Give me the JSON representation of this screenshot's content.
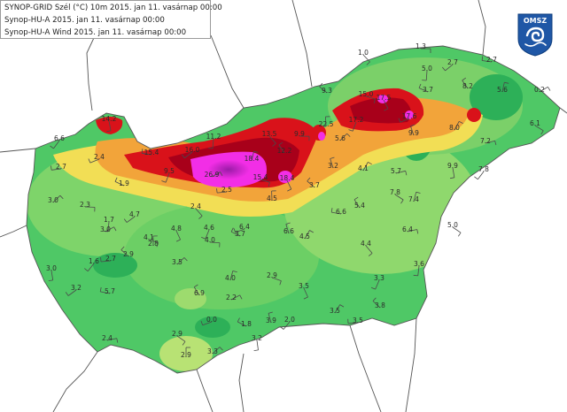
{
  "legend": {
    "line1": "SYNOP-GRID Szél (°C) 10m 2015. jan 11. vasárnap 00:00",
    "line2": "Synop-HU-A 2015. jan 11. vasárnap 00:00",
    "line3": "Synop-HU-A Wind 2015. jan 11. vasárnap 00:00"
  },
  "logo": {
    "text": "OMSZ",
    "color": "#1f57a6"
  },
  "colors": {
    "land_low": "#3fbf62",
    "land_mid": "#9ddb6e",
    "yellow": "#f2de55",
    "orange": "#f2a43a",
    "red": "#d9121a",
    "dark_red": "#a8001a",
    "magenta": "#f22ee6",
    "purple": "#9b1ba8",
    "border": "#555555"
  },
  "stations": [
    {
      "v": "1.3"
    },
    {
      "v": "1.0"
    },
    {
      "v": "5.0"
    },
    {
      "v": "2.7"
    },
    {
      "v": "2.7"
    },
    {
      "v": "8.2"
    },
    {
      "v": "5.6"
    },
    {
      "v": "0.2"
    },
    {
      "v": "15.0"
    },
    {
      "v": "17.5"
    },
    {
      "v": "17.2"
    },
    {
      "v": "17.6"
    },
    {
      "v": "3.7"
    },
    {
      "v": "9.9"
    },
    {
      "v": "8.0"
    },
    {
      "v": "7.2"
    },
    {
      "v": "6.1"
    },
    {
      "v": "14.2"
    },
    {
      "v": "6.6"
    },
    {
      "v": "2.7"
    },
    {
      "v": "9.3"
    },
    {
      "v": "22.5"
    },
    {
      "v": "5.6"
    },
    {
      "v": "9.9"
    },
    {
      "v": "13.5"
    },
    {
      "v": "11.2"
    },
    {
      "v": "16.0"
    },
    {
      "v": "15.4"
    },
    {
      "v": "12.2"
    },
    {
      "v": "18.4"
    },
    {
      "v": "26.9"
    },
    {
      "v": "15.4"
    },
    {
      "v": "18.4"
    },
    {
      "v": "9.5"
    },
    {
      "v": "2.4"
    },
    {
      "v": "1.9"
    },
    {
      "v": "3.2"
    },
    {
      "v": "4.1"
    },
    {
      "v": "5.7"
    },
    {
      "v": "7.8"
    },
    {
      "v": "9.9"
    },
    {
      "v": "7.8"
    },
    {
      "v": "2.5"
    },
    {
      "v": "3.7"
    },
    {
      "v": "4.5"
    },
    {
      "v": "3.0"
    },
    {
      "v": "2.3"
    },
    {
      "v": "2.4"
    },
    {
      "v": "1.7"
    },
    {
      "v": "4.7"
    },
    {
      "v": "6.6"
    },
    {
      "v": "5.4"
    },
    {
      "v": "7.4"
    },
    {
      "v": "3.0"
    },
    {
      "v": "4.1"
    },
    {
      "v": "4.8"
    },
    {
      "v": "4.6"
    },
    {
      "v": "6.4"
    },
    {
      "v": "3.7"
    },
    {
      "v": "6.6"
    },
    {
      "v": "4.5"
    },
    {
      "v": "6.4"
    },
    {
      "v": "5.0"
    },
    {
      "v": "3.0"
    },
    {
      "v": "1.6"
    },
    {
      "v": "2.7"
    },
    {
      "v": "2.9"
    },
    {
      "v": "2.8"
    },
    {
      "v": "3.5"
    },
    {
      "v": "4.0"
    },
    {
      "v": "4.4"
    },
    {
      "v": "3.6"
    },
    {
      "v": "3.2"
    },
    {
      "v": "5.7"
    },
    {
      "v": "6.9"
    },
    {
      "v": "4.0"
    },
    {
      "v": "2.2"
    },
    {
      "v": "2.9"
    },
    {
      "v": "3.5"
    },
    {
      "v": "3.3"
    },
    {
      "v": "0.0"
    },
    {
      "v": "1.8"
    },
    {
      "v": "3.9"
    },
    {
      "v": "3.5"
    },
    {
      "v": "2.4"
    },
    {
      "v": "2.9"
    },
    {
      "v": "3.2"
    },
    {
      "v": "2.0"
    },
    {
      "v": "3.5"
    },
    {
      "v": "3.8"
    },
    {
      "v": "2.9"
    },
    {
      "v": "3.3"
    }
  ]
}
